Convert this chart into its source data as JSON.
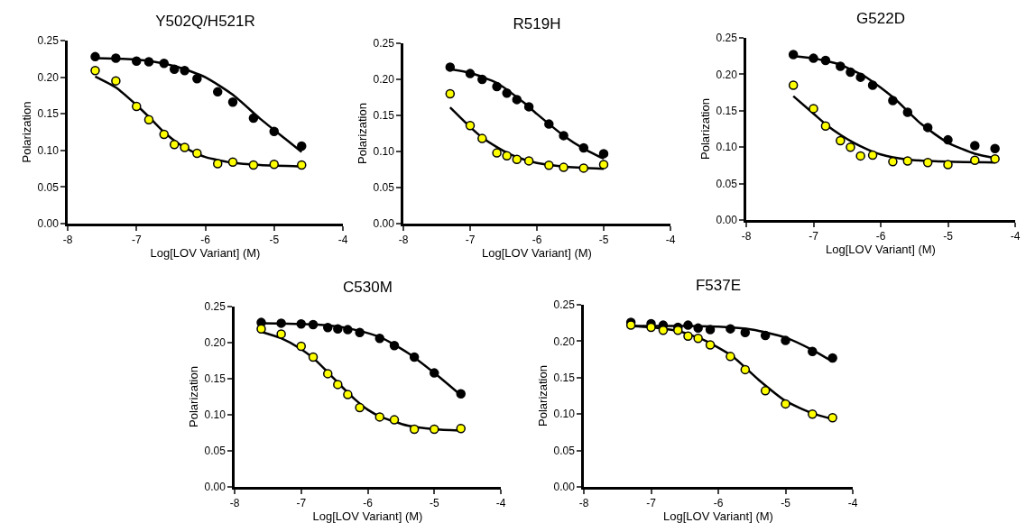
{
  "chart_data": [
    {
      "type": "scatter",
      "title": "Y502Q/H521R",
      "xlabel": "Log[LOV Variant] (M)",
      "ylabel": "Polarization",
      "xlim": [
        -8,
        -4
      ],
      "xticks": [
        -8,
        -7,
        -6,
        -5,
        -4
      ],
      "ylim": [
        0,
        0.25
      ],
      "yticks": [
        {
          "value": 0,
          "label": "0.00"
        },
        {
          "value": 0.05,
          "label": "0.05"
        },
        {
          "value": 0.1,
          "label": "0.10"
        },
        {
          "value": 0.15,
          "label": "0.15"
        },
        {
          "value": 0.2,
          "label": "0.20"
        },
        {
          "value": 0.25,
          "label": "0.25"
        }
      ],
      "grid": false,
      "marker": "circle",
      "series": [
        {
          "type": "line",
          "marker": "none",
          "color": "#000000",
          "x": [
            -7.6,
            -7.2,
            -6.8,
            -6.4,
            -6.0,
            -5.6,
            -5.2,
            -4.8,
            -4.6
          ],
          "values": [
            0.226,
            0.225,
            0.222,
            0.214,
            0.2,
            0.176,
            0.143,
            0.113,
            0.098
          ]
        },
        {
          "type": "line",
          "marker": "none",
          "color": "#000000",
          "x": [
            -7.6,
            -7.3,
            -7.0,
            -6.8,
            -6.6,
            -6.4,
            -6.2,
            -6.0,
            -5.6,
            -5.2,
            -4.6
          ],
          "values": [
            0.201,
            0.186,
            0.162,
            0.144,
            0.125,
            0.11,
            0.099,
            0.091,
            0.083,
            0.08,
            0.078
          ]
        },
        {
          "color": "#000000",
          "x": [
            -7.6,
            -7.3,
            -7.0,
            -6.82,
            -6.6,
            -6.45,
            -6.3,
            -6.12,
            -5.82,
            -5.6,
            -5.3,
            -5.0,
            -4.6
          ],
          "values": [
            0.228,
            0.226,
            0.222,
            0.221,
            0.219,
            0.211,
            0.209,
            0.198,
            0.18,
            0.166,
            0.144,
            0.126,
            0.106
          ]
        },
        {
          "color": "#ffff00",
          "x": [
            -7.6,
            -7.3,
            -7.0,
            -6.82,
            -6.6,
            -6.45,
            -6.3,
            -6.12,
            -5.82,
            -5.6,
            -5.3,
            -5.0,
            -4.6
          ],
          "values": [
            0.209,
            0.195,
            0.16,
            0.142,
            0.122,
            0.108,
            0.104,
            0.096,
            0.082,
            0.084,
            0.08,
            0.081,
            0.08
          ]
        }
      ]
    },
    {
      "type": "scatter",
      "title": "R519H",
      "xlabel": "Log[LOV Variant] (M)",
      "ylabel": "Polarization",
      "xlim": [
        -8,
        -4
      ],
      "xticks": [
        -8,
        -7,
        -6,
        -5,
        -4
      ],
      "ylim": [
        0,
        0.25
      ],
      "yticks": [
        {
          "value": 0,
          "label": "0.00"
        },
        {
          "value": 0.05,
          "label": "0.05"
        },
        {
          "value": 0.1,
          "label": "0.10"
        },
        {
          "value": 0.15,
          "label": "0.15"
        },
        {
          "value": 0.2,
          "label": "0.20"
        },
        {
          "value": 0.25,
          "label": "0.25"
        }
      ],
      "grid": false,
      "marker": "circle",
      "series": [
        {
          "type": "line",
          "marker": "none",
          "color": "#000000",
          "x": [
            -7.3,
            -7.0,
            -6.6,
            -6.2,
            -6.0,
            -5.6,
            -5.3,
            -5.0
          ],
          "values": [
            0.214,
            0.209,
            0.195,
            0.168,
            0.152,
            0.122,
            0.104,
            0.09
          ]
        },
        {
          "type": "line",
          "marker": "none",
          "color": "#000000",
          "x": [
            -7.3,
            -7.0,
            -6.8,
            -6.6,
            -6.4,
            -6.2,
            -6.0,
            -5.6,
            -5.0
          ],
          "values": [
            0.161,
            0.134,
            0.118,
            0.106,
            0.096,
            0.089,
            0.084,
            0.079,
            0.076
          ]
        },
        {
          "color": "#000000",
          "x": [
            -7.3,
            -7.0,
            -6.82,
            -6.6,
            -6.45,
            -6.3,
            -6.12,
            -5.82,
            -5.6,
            -5.3,
            -5.0
          ],
          "values": [
            0.217,
            0.208,
            0.2,
            0.19,
            0.181,
            0.172,
            0.162,
            0.138,
            0.122,
            0.105,
            0.097
          ]
        },
        {
          "color": "#ffff00",
          "x": [
            -7.3,
            -7.0,
            -6.82,
            -6.6,
            -6.45,
            -6.3,
            -6.12,
            -5.82,
            -5.6,
            -5.3,
            -5.0
          ],
          "values": [
            0.18,
            0.136,
            0.118,
            0.098,
            0.094,
            0.089,
            0.087,
            0.081,
            0.078,
            0.077,
            0.082
          ]
        }
      ]
    },
    {
      "type": "scatter",
      "title": "G522D",
      "xlabel": "Log[LOV Variant] (M)",
      "ylabel": "Polarization",
      "xlim": [
        -8,
        -4
      ],
      "xticks": [
        -8,
        -7,
        -6,
        -5,
        -4
      ],
      "ylim": [
        0,
        0.25
      ],
      "yticks": [
        {
          "value": 0,
          "label": "0.00"
        },
        {
          "value": 0.05,
          "label": "0.05"
        },
        {
          "value": 0.1,
          "label": "0.10"
        },
        {
          "value": 0.15,
          "label": "0.15"
        },
        {
          "value": 0.2,
          "label": "0.20"
        },
        {
          "value": 0.25,
          "label": "0.25"
        }
      ],
      "grid": false,
      "marker": "circle",
      "series": [
        {
          "type": "line",
          "marker": "none",
          "color": "#000000",
          "x": [
            -7.3,
            -7.0,
            -6.6,
            -6.2,
            -5.8,
            -5.4,
            -5.0,
            -4.6,
            -4.3
          ],
          "values": [
            0.225,
            0.222,
            0.213,
            0.195,
            0.167,
            0.132,
            0.106,
            0.091,
            0.085
          ]
        },
        {
          "type": "line",
          "marker": "none",
          "color": "#000000",
          "x": [
            -7.3,
            -7.0,
            -6.8,
            -6.6,
            -6.4,
            -6.2,
            -6.0,
            -5.6,
            -5.0,
            -4.3
          ],
          "values": [
            0.17,
            0.146,
            0.13,
            0.117,
            0.106,
            0.097,
            0.09,
            0.083,
            0.08,
            0.079
          ]
        },
        {
          "color": "#000000",
          "x": [
            -7.3,
            -7.0,
            -6.82,
            -6.6,
            -6.45,
            -6.3,
            -6.12,
            -5.82,
            -5.6,
            -5.3,
            -5.0,
            -4.6,
            -4.3
          ],
          "values": [
            0.227,
            0.222,
            0.219,
            0.211,
            0.203,
            0.196,
            0.185,
            0.164,
            0.148,
            0.127,
            0.11,
            0.102,
            0.098
          ]
        },
        {
          "color": "#ffff00",
          "x": [
            -7.3,
            -7.0,
            -6.82,
            -6.6,
            -6.45,
            -6.3,
            -6.12,
            -5.82,
            -5.6,
            -5.3,
            -5.0,
            -4.6,
            -4.3
          ],
          "values": [
            0.185,
            0.153,
            0.129,
            0.109,
            0.1,
            0.088,
            0.089,
            0.08,
            0.081,
            0.079,
            0.076,
            0.082,
            0.084
          ]
        }
      ]
    },
    {
      "type": "scatter",
      "title": "C530M",
      "xlabel": "Log[LOV Variant] (M)",
      "ylabel": "Polarization",
      "xlim": [
        -8,
        -4
      ],
      "xticks": [
        -8,
        -7,
        -6,
        -5,
        -4
      ],
      "ylim": [
        0,
        0.25
      ],
      "yticks": [
        {
          "value": 0,
          "label": "0.00"
        },
        {
          "value": 0.05,
          "label": "0.05"
        },
        {
          "value": 0.1,
          "label": "0.10"
        },
        {
          "value": 0.15,
          "label": "0.15"
        },
        {
          "value": 0.2,
          "label": "0.20"
        },
        {
          "value": 0.25,
          "label": "0.25"
        }
      ],
      "grid": false,
      "marker": "circle",
      "series": [
        {
          "type": "line",
          "marker": "none",
          "color": "#000000",
          "x": [
            -7.6,
            -7.0,
            -6.6,
            -6.2,
            -5.8,
            -5.4,
            -5.0,
            -4.6
          ],
          "values": [
            0.227,
            0.226,
            0.224,
            0.218,
            0.207,
            0.186,
            0.158,
            0.127
          ]
        },
        {
          "type": "line",
          "marker": "none",
          "color": "#000000",
          "x": [
            -7.6,
            -7.3,
            -7.0,
            -6.8,
            -6.6,
            -6.4,
            -6.2,
            -6.0,
            -5.8,
            -5.4,
            -5.0,
            -4.6
          ],
          "values": [
            0.215,
            0.206,
            0.191,
            0.177,
            0.159,
            0.14,
            0.122,
            0.107,
            0.097,
            0.085,
            0.08,
            0.078
          ]
        },
        {
          "color": "#000000",
          "x": [
            -7.6,
            -7.3,
            -7.0,
            -6.82,
            -6.6,
            -6.45,
            -6.3,
            -6.12,
            -5.82,
            -5.6,
            -5.3,
            -5.0,
            -4.6
          ],
          "values": [
            0.228,
            0.227,
            0.226,
            0.225,
            0.221,
            0.219,
            0.218,
            0.214,
            0.206,
            0.196,
            0.18,
            0.158,
            0.129
          ]
        },
        {
          "color": "#ffff00",
          "x": [
            -7.6,
            -7.3,
            -7.0,
            -6.82,
            -6.6,
            -6.45,
            -6.3,
            -6.12,
            -5.82,
            -5.6,
            -5.3,
            -5.0,
            -4.6
          ],
          "values": [
            0.219,
            0.212,
            0.195,
            0.18,
            0.157,
            0.142,
            0.128,
            0.11,
            0.097,
            0.093,
            0.08,
            0.08,
            0.081
          ]
        }
      ]
    },
    {
      "type": "scatter",
      "title": "F537E",
      "xlabel": "Log[LOV Variant] (M)",
      "ylabel": "Polarization",
      "xlim": [
        -8,
        -4
      ],
      "xticks": [
        -8,
        -7,
        -6,
        -5,
        -4
      ],
      "ylim": [
        0,
        0.25
      ],
      "yticks": [
        {
          "value": 0,
          "label": "0.00"
        },
        {
          "value": 0.05,
          "label": "0.05"
        },
        {
          "value": 0.1,
          "label": "0.10"
        },
        {
          "value": 0.15,
          "label": "0.15"
        },
        {
          "value": 0.2,
          "label": "0.20"
        },
        {
          "value": 0.25,
          "label": "0.25"
        }
      ],
      "grid": false,
      "marker": "circle",
      "series": [
        {
          "type": "line",
          "marker": "none",
          "color": "#000000",
          "x": [
            -7.3,
            -6.5,
            -6.0,
            -5.5,
            -5.0,
            -4.6,
            -4.3
          ],
          "values": [
            0.221,
            0.221,
            0.22,
            0.216,
            0.205,
            0.188,
            0.172
          ]
        },
        {
          "type": "line",
          "marker": "none",
          "color": "#000000",
          "x": [
            -7.3,
            -7.0,
            -6.6,
            -6.2,
            -5.8,
            -5.4,
            -5.0,
            -4.6,
            -4.3
          ],
          "values": [
            0.221,
            0.219,
            0.214,
            0.201,
            0.18,
            0.147,
            0.118,
            0.101,
            0.093
          ]
        },
        {
          "color": "#000000",
          "x": [
            -7.3,
            -7.0,
            -6.82,
            -6.6,
            -6.45,
            -6.3,
            -6.12,
            -5.82,
            -5.6,
            -5.3,
            -5.0,
            -4.6,
            -4.3
          ],
          "values": [
            0.226,
            0.224,
            0.222,
            0.219,
            0.222,
            0.218,
            0.216,
            0.217,
            0.212,
            0.208,
            0.201,
            0.186,
            0.177
          ]
        },
        {
          "color": "#ffff00",
          "x": [
            -7.3,
            -7.0,
            -6.82,
            -6.6,
            -6.45,
            -6.3,
            -6.12,
            -5.82,
            -5.6,
            -5.3,
            -5.0,
            -4.6,
            -4.3
          ],
          "values": [
            0.222,
            0.219,
            0.215,
            0.215,
            0.207,
            0.204,
            0.195,
            0.179,
            0.161,
            0.132,
            0.114,
            0.1,
            0.095
          ]
        }
      ]
    }
  ]
}
